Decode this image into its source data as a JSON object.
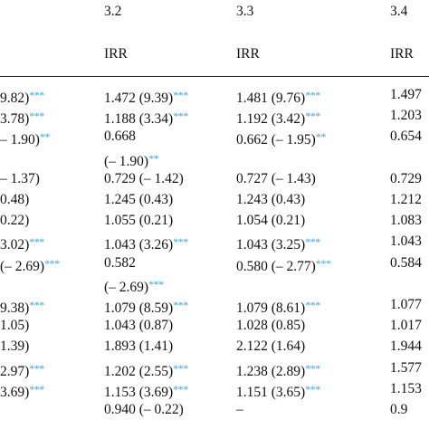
{
  "table": {
    "headers": [
      "",
      "3.2",
      "3.3",
      "3.4"
    ],
    "subheaders": [
      "",
      "IRR",
      "IRR",
      "IRR"
    ],
    "rows": [
      [
        {
          "t": "9.82)",
          "s": "***"
        },
        {
          "t": "1.472 (9.39)",
          "s": "***"
        },
        {
          "t": "1.481 (9.76)",
          "s": "***"
        },
        "1.497"
      ],
      [
        {
          "t": "3.78)",
          "s": "***"
        },
        {
          "t": "1.188 (3.34)",
          "s": "***"
        },
        {
          "t": "1.192 (3.42)",
          "s": "***"
        },
        "1.203"
      ],
      [
        {
          "t": "– 1.90)",
          "s": "**"
        },
        "0.668",
        {
          "t": "0.662 (– 1.95)",
          "s": "**"
        },
        "0.654"
      ],
      [
        "",
        {
          "t": "(– 1.90)",
          "s": "**"
        },
        "",
        ""
      ],
      [
        "– 1.37)",
        "0.729 (– 1.42)",
        "0.727 (– 1.43)",
        "0.729"
      ],
      [
        "0.48)",
        "1.245 (0.43)",
        "1.243 (0.43)",
        "1.212"
      ],
      [
        "0.22)",
        "1.055 (0.21)",
        "1.054 (0.21)",
        "1.083"
      ],
      [
        {
          "t": "3.02)",
          "s": "***"
        },
        {
          "t": "1.043 (3.26)",
          "s": "***"
        },
        {
          "t": "1.043 (3.25)",
          "s": "***"
        },
        "1.043"
      ],
      [
        {
          "t": "(– 2.69)",
          "s": "***"
        },
        "0.582",
        {
          "t": "0.580 (– 2.77)",
          "s": "***"
        },
        "0.584"
      ],
      [
        "",
        {
          "t": "(– 2.69)",
          "s": "***"
        },
        "",
        ""
      ],
      [
        {
          "t": "9.38)",
          "s": "***"
        },
        {
          "t": "1.079 (8.59)",
          "s": "***"
        },
        {
          "t": "1.079 (8.61)",
          "s": "***"
        },
        "1.077"
      ],
      [
        "1.05)",
        "1.043 (0.87)",
        "1.028 (0.85)",
        "1.017"
      ],
      [
        "1.39)",
        "1.893 (1.41)",
        "2.122 (1.64)",
        "1.944"
      ],
      [
        {
          "t": "2.97)",
          "s": "***"
        },
        {
          "t": "1.202 (2.55)",
          "s": "***"
        },
        {
          "t": "1.238 (2.89)",
          "s": "***"
        },
        "1.577"
      ],
      [
        {
          "t": "3.69)",
          "s": "***"
        },
        {
          "t": "1.153 (3.69)",
          "s": "***"
        },
        {
          "t": "1.151 (3.65)",
          "s": "***"
        },
        "1.153"
      ],
      [
        "",
        "0.940 (– 0.22)",
        "–",
        "0.9"
      ]
    ]
  }
}
